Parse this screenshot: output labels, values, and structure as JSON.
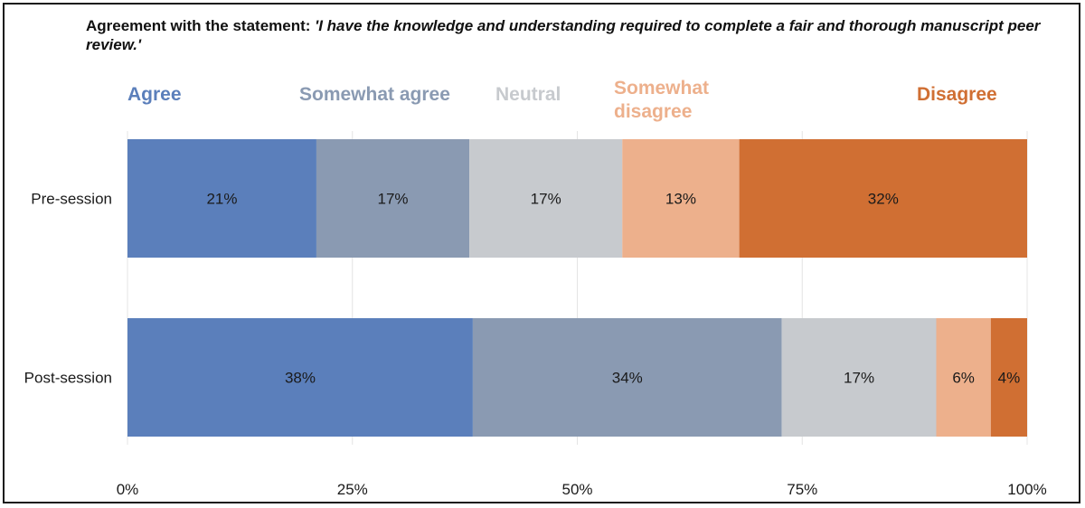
{
  "title": {
    "prefix": "Agreement with the statement:",
    "statement": "'I have the knowledge and understanding required to complete a fair and thorough manuscript peer review.'"
  },
  "chart_data": {
    "type": "bar",
    "orientation": "horizontal",
    "stacked": true,
    "categories": [
      "Pre-session",
      "Post-session"
    ],
    "series": [
      {
        "name": "Agree",
        "legend_lines": [
          "Agree"
        ],
        "color": "#5b7fbb",
        "values": [
          21,
          38
        ],
        "labels": [
          "21%",
          "38%"
        ]
      },
      {
        "name": "Somewhat agree",
        "legend_lines": [
          "Somewhat agree"
        ],
        "color": "#8a9ab2",
        "values": [
          17,
          34
        ],
        "labels": [
          "17%",
          "34%"
        ]
      },
      {
        "name": "Neutral",
        "legend_lines": [
          "Neutral"
        ],
        "color": "#c7cace",
        "values": [
          17,
          17
        ],
        "labels": [
          "17%",
          "17%"
        ]
      },
      {
        "name": "Somewhat disagree",
        "legend_lines": [
          "Somewhat",
          "disagree"
        ],
        "color": "#edb08c",
        "values": [
          13,
          6
        ],
        "labels": [
          "13%",
          "6%"
        ]
      },
      {
        "name": "Disagree",
        "legend_lines": [
          "Disagree"
        ],
        "color": "#d06f33",
        "values": [
          32,
          4
        ],
        "labels": [
          "32%",
          "4%"
        ]
      }
    ],
    "xlim": [
      0,
      100
    ],
    "x_ticks": [
      0,
      25,
      50,
      75,
      100
    ],
    "x_tick_labels": [
      "0%",
      "25%",
      "50%",
      "75%",
      "100%"
    ],
    "grid": "vertical",
    "legend_position": "top",
    "xlabel": "",
    "ylabel": ""
  }
}
